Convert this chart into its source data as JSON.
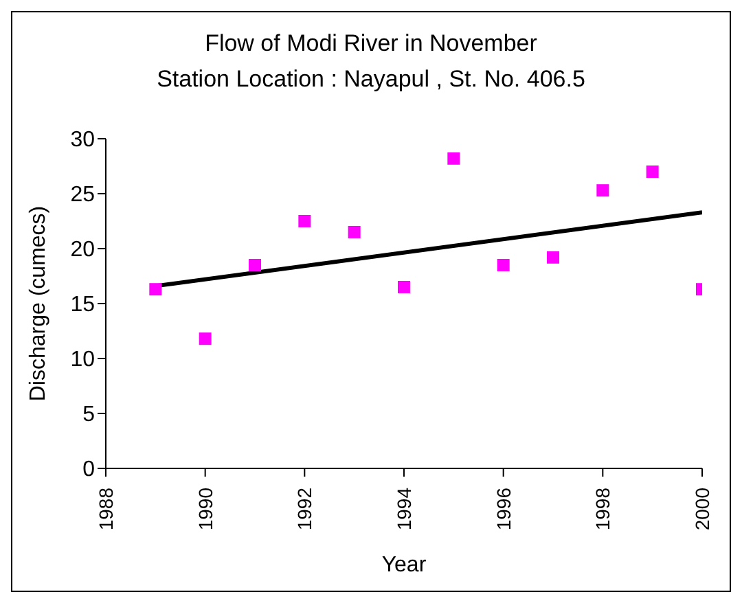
{
  "chart_data": {
    "type": "scatter",
    "title": "Flow of Modi River in November",
    "subtitle": "Station Location : Nayapul , St. No. 406.5",
    "xlabel": "Year",
    "ylabel": "Discharge (cumecs)",
    "x": [
      1989,
      1990,
      1991,
      1992,
      1993,
      1994,
      1995,
      1996,
      1997,
      1998,
      1999,
      2000
    ],
    "series": [
      {
        "color": "#ff00ff",
        "marker": "square",
        "values": [
          16.3,
          11.8,
          18.5,
          22.5,
          21.5,
          16.5,
          28.2,
          18.5,
          19.2,
          25.3,
          27.0,
          16.3
        ]
      },
      {
        "type": "line",
        "color": "#000000",
        "marker": "none",
        "line_style": "solid",
        "x": [
          1989,
          2000
        ],
        "values": [
          16.6,
          23.3
        ]
      }
    ],
    "xlim": [
      1988,
      2000
    ],
    "xticks": [
      1988,
      1990,
      1992,
      1994,
      1996,
      1998,
      2000
    ],
    "ylim": [
      0,
      30
    ],
    "yticks": [
      0,
      5,
      10,
      15,
      20,
      25,
      30
    ],
    "grid": false,
    "legend": false
  }
}
